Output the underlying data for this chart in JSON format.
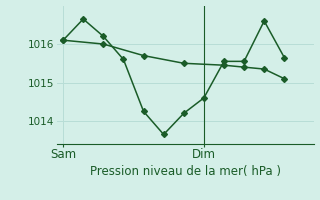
{
  "title": "Pression niveau de la mer( hPa )",
  "background_color": "#d4efe8",
  "plot_bg_color": "#d4efe8",
  "grid_color": "#b8ddd6",
  "line_color": "#1a5c28",
  "marker_color": "#1a5c28",
  "tick_color": "#1a5c28",
  "ylim": [
    1013.4,
    1017.0
  ],
  "xlim": [
    -0.3,
    12.5
  ],
  "yticks": [
    1014,
    1015,
    1016
  ],
  "sam_label": "Sam",
  "dim_label": "Dim",
  "sam_x": 0.0,
  "dim_x": 7.0,
  "vline_x": 7.0,
  "series_wiggly_x": [
    0,
    1,
    2,
    3,
    4,
    5,
    6,
    7,
    8,
    9,
    10,
    11
  ],
  "series_wiggly_y": [
    1016.1,
    1016.65,
    1016.2,
    1015.6,
    1014.25,
    1013.65,
    1014.2,
    1014.6,
    1015.55,
    1015.55,
    1016.6,
    1015.65
  ],
  "series_straight_x": [
    0,
    2,
    4,
    6,
    8,
    9,
    10,
    11
  ],
  "series_straight_y": [
    1016.1,
    1016.0,
    1015.7,
    1015.5,
    1015.45,
    1015.4,
    1015.35,
    1015.1
  ],
  "fontsize_label": 8.5,
  "fontsize_tick": 7.5,
  "linewidth": 1.1,
  "markersize": 3
}
